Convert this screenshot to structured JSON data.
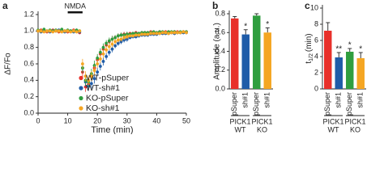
{
  "chart_data": [
    {
      "type": "line",
      "panel_label": "a",
      "ylabel": "ΔF/Fo",
      "xlabel": "Time (min)",
      "annotation": {
        "text": "NMDA",
        "x": [
          10,
          15
        ]
      },
      "legend": "lower right",
      "x": [
        0,
        1,
        2,
        3,
        4,
        5,
        6,
        7,
        8,
        9,
        10,
        11,
        12,
        13,
        14,
        15,
        16,
        17,
        18,
        19,
        20,
        21,
        22,
        23,
        24,
        25,
        26,
        27,
        28,
        29,
        30,
        31,
        32,
        33,
        34,
        35,
        36,
        37,
        38,
        39,
        40,
        41,
        42,
        43,
        44,
        45,
        46,
        47,
        48,
        49,
        50
      ],
      "xlim": [
        0,
        50
      ],
      "xticks": [
        0,
        10,
        20,
        30,
        40,
        50
      ],
      "ylim": [
        0,
        1.2
      ],
      "yticks": [
        {
          "value": 0,
          "label": "0.0"
        },
        0.2,
        0.4,
        0.6,
        0.8,
        {
          "value": 1,
          "label": "1.0"
        },
        1.2
      ],
      "series": [
        {
          "name": "WT-pSuper",
          "color": "#e8302a",
          "values": [
            1.0,
            1.01,
            1.0,
            0.99,
            1.0,
            1.01,
            1.0,
            0.99,
            1.0,
            1.0,
            0.99,
            1.0,
            1.01,
            1.0,
            0.98,
            0.5,
            0.32,
            0.35,
            0.45,
            0.55,
            0.65,
            0.72,
            0.78,
            0.83,
            0.87,
            0.9,
            0.92,
            0.94,
            0.95,
            0.96,
            0.96,
            0.97,
            0.97,
            0.98,
            0.97,
            0.98,
            0.98,
            0.98,
            0.99,
            0.98,
            0.98,
            0.99,
            0.98,
            0.99,
            0.99,
            0.98,
            0.99,
            0.99,
            0.98,
            0.99,
            0.99
          ],
          "errors": [
            0.02,
            0.02,
            0.02,
            0.02,
            0.02,
            0.02,
            0.02,
            0.02,
            0.02,
            0.02,
            0.02,
            0.02,
            0.02,
            0.02,
            0.02,
            0.06,
            0.06,
            0.06,
            0.06,
            0.06,
            0.05,
            0.05,
            0.05,
            0.04,
            0.04,
            0.04,
            0.03,
            0.03,
            0.03,
            0.03,
            0.03,
            0.02,
            0.02,
            0.02,
            0.02,
            0.02,
            0.02,
            0.02,
            0.02,
            0.02,
            0.02,
            0.02,
            0.02,
            0.02,
            0.02,
            0.02,
            0.02,
            0.02,
            0.02,
            0.02,
            0.02
          ]
        },
        {
          "name": "WT-sh#1",
          "color": "#1f5ca8",
          "values": [
            1.0,
            0.99,
            1.0,
            1.0,
            0.99,
            1.0,
            1.0,
            1.01,
            1.0,
            0.99,
            1.0,
            1.0,
            0.99,
            1.0,
            0.99,
            0.55,
            0.38,
            0.33,
            0.36,
            0.42,
            0.5,
            0.57,
            0.63,
            0.69,
            0.74,
            0.78,
            0.82,
            0.85,
            0.87,
            0.89,
            0.9,
            0.92,
            0.93,
            0.93,
            0.94,
            0.95,
            0.95,
            0.95,
            0.96,
            0.96,
            0.96,
            0.97,
            0.97,
            0.97,
            0.97,
            0.98,
            0.97,
            0.98,
            0.98,
            0.98,
            0.98
          ],
          "errors": [
            0.02,
            0.02,
            0.02,
            0.02,
            0.02,
            0.02,
            0.02,
            0.02,
            0.02,
            0.02,
            0.02,
            0.02,
            0.02,
            0.02,
            0.02,
            0.06,
            0.06,
            0.06,
            0.06,
            0.06,
            0.05,
            0.05,
            0.05,
            0.04,
            0.04,
            0.04,
            0.03,
            0.03,
            0.03,
            0.03,
            0.03,
            0.02,
            0.02,
            0.02,
            0.02,
            0.02,
            0.02,
            0.02,
            0.02,
            0.02,
            0.02,
            0.02,
            0.02,
            0.02,
            0.02,
            0.02,
            0.02,
            0.02,
            0.02,
            0.02,
            0.02
          ]
        },
        {
          "name": "KO-pSuper",
          "color": "#2f9e3f",
          "values": [
            1.01,
            1.0,
            1.02,
            1.0,
            1.01,
            1.0,
            1.01,
            1.0,
            1.02,
            1.0,
            1.01,
            1.0,
            1.0,
            1.01,
            1.0,
            0.55,
            0.4,
            0.38,
            0.48,
            0.58,
            0.67,
            0.74,
            0.8,
            0.85,
            0.88,
            0.9,
            0.92,
            0.94,
            0.95,
            0.95,
            0.96,
            0.96,
            0.97,
            0.97,
            0.97,
            0.98,
            0.98,
            0.98,
            0.98,
            0.99,
            0.98,
            0.99,
            0.99,
            0.98,
            0.99,
            0.99,
            0.99,
            0.98,
            0.99,
            0.99,
            0.99
          ],
          "errors": [
            0.02,
            0.02,
            0.02,
            0.02,
            0.02,
            0.02,
            0.02,
            0.02,
            0.02,
            0.02,
            0.02,
            0.02,
            0.02,
            0.02,
            0.02,
            0.06,
            0.06,
            0.06,
            0.06,
            0.06,
            0.05,
            0.05,
            0.05,
            0.04,
            0.04,
            0.04,
            0.03,
            0.03,
            0.03,
            0.03,
            0.03,
            0.02,
            0.02,
            0.02,
            0.02,
            0.02,
            0.02,
            0.02,
            0.02,
            0.02,
            0.02,
            0.02,
            0.02,
            0.02,
            0.02,
            0.02,
            0.02,
            0.02,
            0.02,
            0.02,
            0.02
          ]
        },
        {
          "name": "KO-sh#1",
          "color": "#f5a623",
          "values": [
            1.0,
            1.0,
            0.99,
            1.0,
            1.0,
            0.99,
            1.0,
            1.0,
            0.99,
            1.0,
            1.0,
            0.99,
            1.0,
            0.99,
            1.0,
            0.6,
            0.45,
            0.4,
            0.45,
            0.52,
            0.6,
            0.66,
            0.72,
            0.77,
            0.81,
            0.84,
            0.87,
            0.89,
            0.9,
            0.92,
            0.93,
            0.94,
            0.94,
            0.95,
            0.95,
            0.96,
            0.96,
            0.96,
            0.97,
            0.97,
            0.97,
            0.97,
            0.98,
            0.98,
            0.97,
            0.98,
            0.98,
            0.98,
            0.98,
            0.99,
            0.98
          ],
          "errors": [
            0.02,
            0.02,
            0.02,
            0.02,
            0.02,
            0.02,
            0.02,
            0.02,
            0.02,
            0.02,
            0.02,
            0.02,
            0.02,
            0.02,
            0.02,
            0.06,
            0.06,
            0.06,
            0.06,
            0.06,
            0.05,
            0.05,
            0.05,
            0.04,
            0.04,
            0.04,
            0.03,
            0.03,
            0.03,
            0.03,
            0.03,
            0.02,
            0.02,
            0.02,
            0.02,
            0.02,
            0.02,
            0.02,
            0.02,
            0.02,
            0.02,
            0.02,
            0.02,
            0.02,
            0.02,
            0.02,
            0.02,
            0.02,
            0.02,
            0.02,
            0.02
          ]
        }
      ]
    },
    {
      "type": "bar",
      "panel_label": "b",
      "ylabel": "Amplitude (a.u.)",
      "categories": [
        "pSuper",
        "sh#1",
        "pSuper",
        "sh#1"
      ],
      "group_labels": [
        [
          "PICK1",
          "WT"
        ],
        [
          "PICK1",
          "KO"
        ]
      ],
      "values": [
        0.75,
        0.58,
        0.78,
        0.6
      ],
      "errors": [
        0.02,
        0.05,
        0.02,
        0.05
      ],
      "colors": [
        "#e8302a",
        "#1f5ca8",
        "#2f9e3f",
        "#f5a623"
      ],
      "significance": [
        null,
        "*",
        null,
        "*"
      ],
      "ylim": [
        0,
        0.8
      ],
      "yticks": [
        {
          "value": 0,
          "label": "0.0"
        },
        0.2,
        0.4,
        0.6,
        0.8
      ]
    },
    {
      "type": "bar",
      "panel_label": "c",
      "ylabel": [
        "t",
        "1/2",
        "(min)"
      ],
      "categories": [
        "pSuper",
        "sh#1",
        "pSuper",
        "sh#1"
      ],
      "group_labels": [
        [
          "PICK1",
          "WT"
        ],
        [
          "PICK1",
          "KO"
        ]
      ],
      "values": [
        7.2,
        3.9,
        4.6,
        3.8
      ],
      "errors": [
        1.0,
        0.6,
        0.4,
        0.7
      ],
      "colors": [
        "#e8302a",
        "#1f5ca8",
        "#2f9e3f",
        "#f5a623"
      ],
      "significance": [
        null,
        "**",
        "*",
        "*"
      ],
      "ylim": [
        0,
        10
      ],
      "yticks": [
        0,
        2,
        4,
        6,
        8,
        10
      ]
    }
  ]
}
